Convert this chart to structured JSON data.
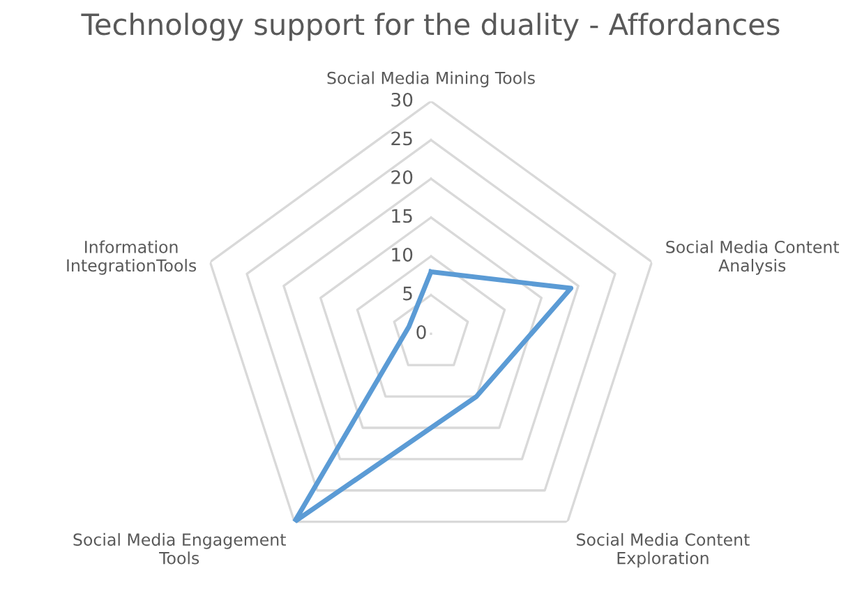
{
  "chart_data": {
    "type": "radar",
    "title": "Technology support for the duality - Affordances",
    "categories": [
      "Social Media Mining Tools",
      "Social Media Content\nAnalysis",
      "Social Media Content\nExploration",
      "Social Media Engagement\nTools",
      "Information\nIntegrationTools"
    ],
    "series": [
      {
        "color": "#5b9bd5",
        "values": [
          8,
          19,
          10,
          30,
          3
        ]
      }
    ],
    "ylim": [
      0,
      30
    ],
    "yticks": [
      0,
      5,
      10,
      15,
      20,
      25,
      30
    ],
    "grid": true
  }
}
